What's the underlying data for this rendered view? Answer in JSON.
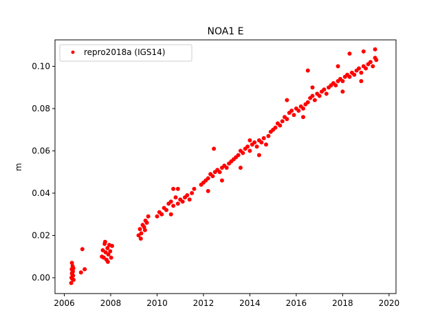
{
  "chart_data": {
    "type": "scatter",
    "title": "NOA1 E",
    "xlabel": "",
    "ylabel": "m",
    "xlim": [
      2005.6,
      2020.3
    ],
    "ylim": [
      -0.0075,
      0.1125
    ],
    "x_ticks": [
      2006,
      2008,
      2010,
      2012,
      2014,
      2016,
      2018,
      2020
    ],
    "x_tick_labels": [
      "2006",
      "2008",
      "2010",
      "2012",
      "2014",
      "2016",
      "2018",
      "2020"
    ],
    "y_ticks": [
      0.0,
      0.02,
      0.04,
      0.06,
      0.08,
      0.1
    ],
    "y_tick_labels": [
      "0.00",
      "0.02",
      "0.04",
      "0.06",
      "0.08",
      "0.10"
    ],
    "grid": false,
    "legend": {
      "position": "top-left",
      "entries": [
        "repro2018a (IGS14)"
      ]
    },
    "series": [
      {
        "name": "repro2018a (IGS14)",
        "color": "#ff0000",
        "marker": "circle",
        "points": [
          [
            2006.3,
            -0.0025
          ],
          [
            2006.31,
            0.0
          ],
          [
            2006.32,
            0.004
          ],
          [
            2006.33,
            0.002
          ],
          [
            2006.34,
            -0.0005
          ],
          [
            2006.35,
            0.0025
          ],
          [
            2006.36,
            0.0055
          ],
          [
            2006.37,
            0.003
          ],
          [
            2006.38,
            0.001
          ],
          [
            2006.4,
            -0.001
          ],
          [
            2006.33,
            0.007
          ],
          [
            2006.36,
            0.001
          ],
          [
            2006.39,
            0.0045
          ],
          [
            2006.72,
            0.0025
          ],
          [
            2006.78,
            0.0135
          ],
          [
            2006.88,
            0.004
          ],
          [
            2007.62,
            0.01
          ],
          [
            2007.66,
            0.013
          ],
          [
            2007.7,
            0.0095
          ],
          [
            2007.74,
            0.016
          ],
          [
            2007.78,
            0.012
          ],
          [
            2007.82,
            0.0085
          ],
          [
            2007.86,
            0.014
          ],
          [
            2007.9,
            0.011
          ],
          [
            2007.94,
            0.0155
          ],
          [
            2007.98,
            0.0125
          ],
          [
            2008.02,
            0.0095
          ],
          [
            2008.06,
            0.015
          ],
          [
            2007.76,
            0.017
          ],
          [
            2007.88,
            0.0075
          ],
          [
            2009.2,
            0.02
          ],
          [
            2009.26,
            0.023
          ],
          [
            2009.32,
            0.021
          ],
          [
            2009.38,
            0.025
          ],
          [
            2009.44,
            0.024
          ],
          [
            2009.5,
            0.027
          ],
          [
            2009.56,
            0.026
          ],
          [
            2009.62,
            0.029
          ],
          [
            2009.3,
            0.0185
          ],
          [
            2009.48,
            0.0225
          ],
          [
            2010.0,
            0.029
          ],
          [
            2010.1,
            0.031
          ],
          [
            2010.2,
            0.03
          ],
          [
            2010.3,
            0.033
          ],
          [
            2010.4,
            0.032
          ],
          [
            2010.5,
            0.035
          ],
          [
            2010.6,
            0.036
          ],
          [
            2010.7,
            0.034
          ],
          [
            2010.8,
            0.038
          ],
          [
            2010.9,
            0.035
          ],
          [
            2011.0,
            0.037
          ],
          [
            2011.1,
            0.036
          ],
          [
            2011.2,
            0.038
          ],
          [
            2011.3,
            0.039
          ],
          [
            2011.4,
            0.037
          ],
          [
            2011.5,
            0.04
          ],
          [
            2011.6,
            0.042
          ],
          [
            2010.7,
            0.042
          ],
          [
            2010.9,
            0.042
          ],
          [
            2010.6,
            0.03
          ],
          [
            2011.9,
            0.044
          ],
          [
            2012.0,
            0.045
          ],
          [
            2012.1,
            0.046
          ],
          [
            2012.2,
            0.047
          ],
          [
            2012.3,
            0.049
          ],
          [
            2012.4,
            0.048
          ],
          [
            2012.5,
            0.05
          ],
          [
            2012.6,
            0.051
          ],
          [
            2012.7,
            0.05
          ],
          [
            2012.8,
            0.052
          ],
          [
            2012.9,
            0.053
          ],
          [
            2012.45,
            0.061
          ],
          [
            2012.2,
            0.041
          ],
          [
            2012.8,
            0.046
          ],
          [
            2013.0,
            0.052
          ],
          [
            2013.1,
            0.054
          ],
          [
            2013.2,
            0.055
          ],
          [
            2013.3,
            0.056
          ],
          [
            2013.4,
            0.057
          ],
          [
            2013.5,
            0.058
          ],
          [
            2013.6,
            0.06
          ],
          [
            2013.7,
            0.059
          ],
          [
            2013.8,
            0.061
          ],
          [
            2013.9,
            0.062
          ],
          [
            2014.0,
            0.06
          ],
          [
            2014.1,
            0.063
          ],
          [
            2014.2,
            0.064
          ],
          [
            2014.3,
            0.062
          ],
          [
            2014.4,
            0.065
          ],
          [
            2014.5,
            0.064
          ],
          [
            2014.6,
            0.066
          ],
          [
            2014.7,
            0.063
          ],
          [
            2014.8,
            0.067
          ],
          [
            2014.9,
            0.069
          ],
          [
            2013.6,
            0.052
          ],
          [
            2014.0,
            0.065
          ],
          [
            2014.4,
            0.058
          ],
          [
            2015.0,
            0.07
          ],
          [
            2015.1,
            0.071
          ],
          [
            2015.2,
            0.073
          ],
          [
            2015.3,
            0.072
          ],
          [
            2015.4,
            0.074
          ],
          [
            2015.5,
            0.076
          ],
          [
            2015.6,
            0.075
          ],
          [
            2015.7,
            0.078
          ],
          [
            2015.8,
            0.079
          ],
          [
            2015.9,
            0.077
          ],
          [
            2016.0,
            0.08
          ],
          [
            2016.1,
            0.079
          ],
          [
            2016.2,
            0.081
          ],
          [
            2016.3,
            0.08
          ],
          [
            2016.4,
            0.082
          ],
          [
            2016.5,
            0.083
          ],
          [
            2016.6,
            0.085
          ],
          [
            2016.7,
            0.086
          ],
          [
            2016.8,
            0.084
          ],
          [
            2016.9,
            0.087
          ],
          [
            2015.6,
            0.084
          ],
          [
            2016.5,
            0.098
          ],
          [
            2016.7,
            0.09
          ],
          [
            2016.3,
            0.076
          ],
          [
            2017.0,
            0.086
          ],
          [
            2017.1,
            0.088
          ],
          [
            2017.2,
            0.089
          ],
          [
            2017.3,
            0.087
          ],
          [
            2017.4,
            0.09
          ],
          [
            2017.5,
            0.091
          ],
          [
            2017.6,
            0.092
          ],
          [
            2017.7,
            0.091
          ],
          [
            2017.8,
            0.093
          ],
          [
            2017.9,
            0.094
          ],
          [
            2018.0,
            0.093
          ],
          [
            2018.1,
            0.095
          ],
          [
            2018.2,
            0.096
          ],
          [
            2018.3,
            0.095
          ],
          [
            2018.4,
            0.097
          ],
          [
            2018.5,
            0.096
          ],
          [
            2018.6,
            0.098
          ],
          [
            2018.7,
            0.099
          ],
          [
            2018.8,
            0.097
          ],
          [
            2018.9,
            0.1
          ],
          [
            2019.0,
            0.099
          ],
          [
            2019.1,
            0.101
          ],
          [
            2019.2,
            0.102
          ],
          [
            2019.3,
            0.1
          ],
          [
            2019.4,
            0.104
          ],
          [
            2019.45,
            0.103
          ],
          [
            2017.8,
            0.1
          ],
          [
            2018.3,
            0.106
          ],
          [
            2018.9,
            0.107
          ],
          [
            2019.4,
            0.108
          ],
          [
            2018.0,
            0.088
          ],
          [
            2018.8,
            0.093
          ]
        ]
      }
    ]
  }
}
